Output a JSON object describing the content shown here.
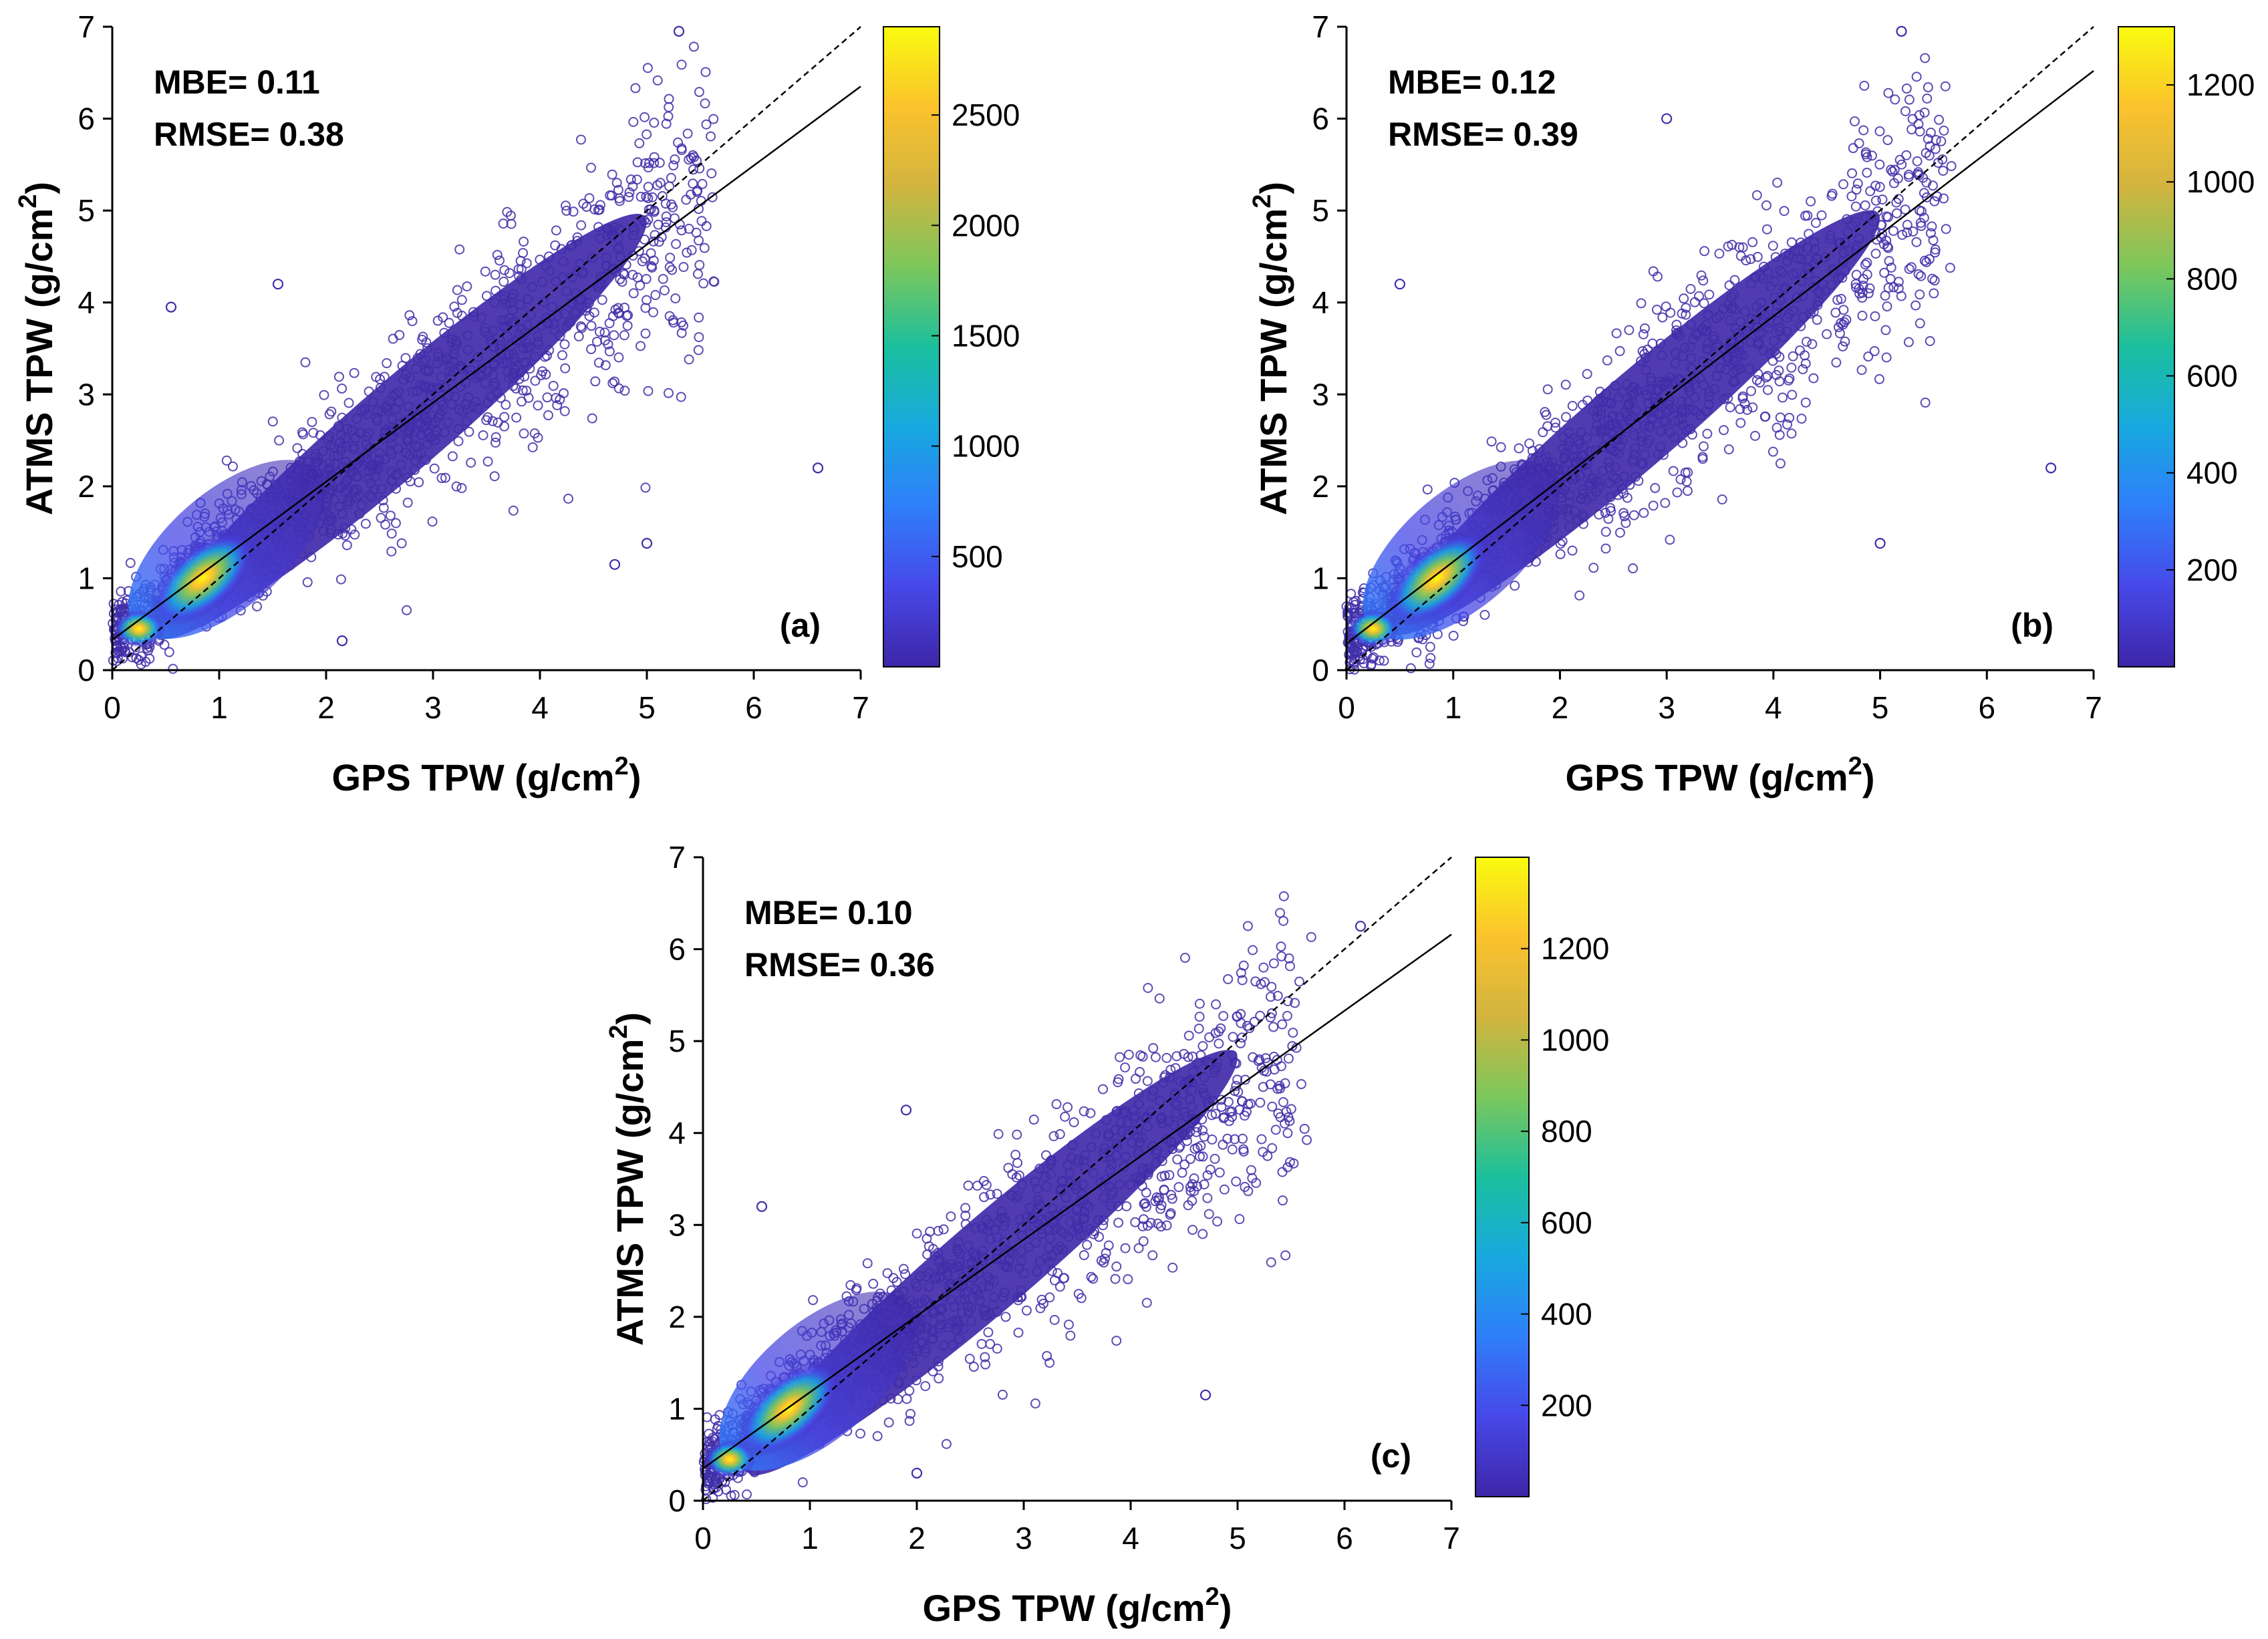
{
  "colors": {
    "axis": "#000000",
    "point_edge": "#3f2ea8",
    "fit_line": "#000000",
    "one_to_one_line": "#000000",
    "colormap_stops": [
      "#3e26a8",
      "#4748e8",
      "#2f7efa",
      "#18a9df",
      "#1bbf9d",
      "#7cc75c",
      "#d2b43f",
      "#fbc22d",
      "#f9fb0e"
    ]
  },
  "chart_data": [
    {
      "type": "scatter",
      "id": "a",
      "panel_label": "(a)",
      "xlabel": "GPS TPW (g/cm",
      "ylabel": "ATMS TPW (g/cm",
      "unit_superscript": "2",
      "xlabel_close": ")",
      "ylabel_close": ")",
      "xlim": [
        0,
        7
      ],
      "ylim": [
        0,
        7
      ],
      "x_ticks": [
        "0",
        "1",
        "2",
        "3",
        "4",
        "5",
        "6",
        "7"
      ],
      "y_ticks": [
        "0",
        "1",
        "2",
        "3",
        "4",
        "5",
        "6",
        "7"
      ],
      "stats": {
        "mbe_label": "MBE= 0.11",
        "rmse_label": "RMSE= 0.38",
        "mbe": 0.11,
        "rmse": 0.38
      },
      "fit_line": {
        "slope": 0.86,
        "intercept": 0.33
      },
      "one_to_one_line": {
        "slope": 1,
        "intercept": 0
      },
      "density_core": [
        0.85,
        1.0
      ],
      "colorbar": {
        "min": 0,
        "max": 2900,
        "ticks": [
          "500",
          "1000",
          "1500",
          "2000",
          "2500"
        ],
        "tick_values": [
          500,
          1000,
          1500,
          2000,
          2500
        ]
      },
      "outliers": [
        [
          6.6,
          2.2
        ],
        [
          4.7,
          1.15
        ],
        [
          5.0,
          1.38
        ],
        [
          2.15,
          0.32
        ],
        [
          0.55,
          3.95
        ],
        [
          1.55,
          4.2
        ],
        [
          5.3,
          6.95
        ]
      ]
    },
    {
      "type": "scatter",
      "id": "b",
      "panel_label": "(b)",
      "xlabel": "GPS TPW (g/cm",
      "ylabel": "ATMS TPW (g/cm",
      "unit_superscript": "2",
      "xlabel_close": ")",
      "ylabel_close": ")",
      "xlim": [
        0,
        7
      ],
      "ylim": [
        0,
        7
      ],
      "x_ticks": [
        "0",
        "1",
        "2",
        "3",
        "4",
        "5",
        "6",
        "7"
      ],
      "y_ticks": [
        "0",
        "1",
        "2",
        "3",
        "4",
        "5",
        "6",
        "7"
      ],
      "stats": {
        "mbe_label": "MBE= 0.12",
        "rmse_label": "RMSE= 0.39",
        "mbe": 0.12,
        "rmse": 0.39
      },
      "fit_line": {
        "slope": 0.89,
        "intercept": 0.29
      },
      "one_to_one_line": {
        "slope": 1,
        "intercept": 0
      },
      "density_core": [
        0.85,
        1.0
      ],
      "colorbar": {
        "min": 0,
        "max": 1320,
        "ticks": [
          "200",
          "400",
          "600",
          "800",
          "1000",
          "1200"
        ],
        "tick_values": [
          200,
          400,
          600,
          800,
          1000,
          1200
        ]
      },
      "outliers": [
        [
          6.6,
          2.2
        ],
        [
          5.0,
          1.38
        ],
        [
          0.5,
          4.2
        ],
        [
          5.2,
          6.95
        ],
        [
          3.0,
          6.0
        ]
      ]
    },
    {
      "type": "scatter",
      "id": "c",
      "panel_label": "(c)",
      "xlabel": "GPS TPW (g/cm",
      "ylabel": "ATMS TPW (g/cm",
      "unit_superscript": "2",
      "xlabel_close": ")",
      "ylabel_close": ")",
      "xlim": [
        0,
        7
      ],
      "ylim": [
        0,
        7
      ],
      "x_ticks": [
        "0",
        "1",
        "2",
        "3",
        "4",
        "5",
        "6",
        "7"
      ],
      "y_ticks": [
        "0",
        "1",
        "2",
        "3",
        "4",
        "5",
        "6",
        "7"
      ],
      "stats": {
        "mbe_label": "MBE= 0.10",
        "rmse_label": "RMSE= 0.36",
        "mbe": 0.1,
        "rmse": 0.36
      },
      "fit_line": {
        "slope": 0.83,
        "intercept": 0.35
      },
      "one_to_one_line": {
        "slope": 1,
        "intercept": 0
      },
      "density_core": [
        0.8,
        1.0
      ],
      "colorbar": {
        "min": 0,
        "max": 1400,
        "ticks": [
          "200",
          "400",
          "600",
          "800",
          "1000",
          "1200"
        ],
        "tick_values": [
          200,
          400,
          600,
          800,
          1000,
          1200
        ]
      },
      "outliers": [
        [
          4.7,
          1.15
        ],
        [
          2.0,
          0.3
        ],
        [
          1.9,
          4.25
        ],
        [
          6.15,
          6.25
        ],
        [
          0.55,
          3.2
        ]
      ]
    }
  ]
}
